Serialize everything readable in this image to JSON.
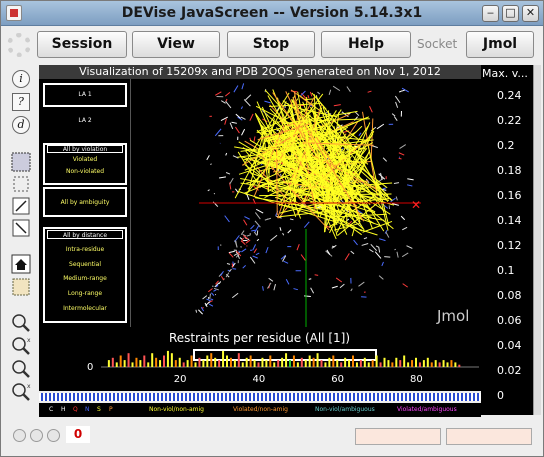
{
  "window": {
    "title": "DEVise JavaScreen -- Version 5.14.3x1"
  },
  "toolbar": {
    "session_label": "Session",
    "view_label": "View",
    "stop_label": "Stop",
    "help_label": "Help",
    "socket_label": "Socket",
    "jmol_label": "Jmol"
  },
  "left_tools": {
    "info": "i",
    "help": "?",
    "d": "d"
  },
  "viz": {
    "title": "Visualization of 15209x and PDB 2OQS generated on Nov 1, 2012",
    "side": {
      "la1": "LA 1",
      "la2": "LA 2",
      "all_by_violation": "All by violation",
      "violated": "Violated",
      "non_violated": "Non-violated",
      "all_by_ambiguity": "All by ambiguity",
      "all_by_distance": "All by distance",
      "intra_residue": "Intra-residue",
      "sequential": "Sequential",
      "medium_range": "Medium-range",
      "long_range": "Long-range",
      "intermolecular": "Intermolecular"
    },
    "jmol_watermark": "Jmol"
  },
  "chart_data": {
    "type": "bar",
    "title": "Restraints per residue (All [1])",
    "xlim": [
      0,
      96
    ],
    "x_ticks": [
      "20",
      "40",
      "60",
      "80"
    ],
    "y_tick": "0",
    "bars": [
      {
        "x": 2,
        "v": 3,
        "c": "#ffff33"
      },
      {
        "x": 3,
        "v": 4,
        "c": "#ff5555"
      },
      {
        "x": 4,
        "v": 2,
        "c": "#ffff33"
      },
      {
        "x": 5,
        "v": 5,
        "c": "#ff8800"
      },
      {
        "x": 6,
        "v": 3,
        "c": "#ffff33"
      },
      {
        "x": 7,
        "v": 6,
        "c": "#ff5555"
      },
      {
        "x": 8,
        "v": 2,
        "c": "#ffff33"
      },
      {
        "x": 9,
        "v": 4,
        "c": "#ff8800"
      },
      {
        "x": 10,
        "v": 3,
        "c": "#ffff33"
      },
      {
        "x": 11,
        "v": 5,
        "c": "#ff5555"
      },
      {
        "x": 12,
        "v": 2,
        "c": "#ffff33"
      },
      {
        "x": 13,
        "v": 6,
        "c": "#ffff33"
      },
      {
        "x": 14,
        "v": 4,
        "c": "#ff8800"
      },
      {
        "x": 15,
        "v": 3,
        "c": "#ffff33"
      },
      {
        "x": 16,
        "v": 5,
        "c": "#ff5555"
      },
      {
        "x": 17,
        "v": 7,
        "c": "#ffff33"
      },
      {
        "x": 18,
        "v": 6,
        "c": "#ffff33"
      },
      {
        "x": 19,
        "v": 3,
        "c": "#ff8800"
      },
      {
        "x": 20,
        "v": 4,
        "c": "#ffff33"
      },
      {
        "x": 21,
        "v": 2,
        "c": "#ff5555"
      },
      {
        "x": 22,
        "v": 3,
        "c": "#ffff33"
      },
      {
        "x": 23,
        "v": 5,
        "c": "#ff8800"
      },
      {
        "x": 24,
        "v": 2,
        "c": "#ffff33"
      },
      {
        "x": 25,
        "v": 4,
        "c": "#ff5555"
      },
      {
        "x": 26,
        "v": 3,
        "c": "#ffff33"
      },
      {
        "x": 27,
        "v": 5,
        "c": "#ffff33"
      },
      {
        "x": 28,
        "v": 6,
        "c": "#ff8800"
      },
      {
        "x": 29,
        "v": 4,
        "c": "#ffff33"
      },
      {
        "x": 30,
        "v": 3,
        "c": "#ff5555"
      },
      {
        "x": 31,
        "v": 7,
        "c": "#ffff33"
      },
      {
        "x": 32,
        "v": 5,
        "c": "#ffff33"
      },
      {
        "x": 33,
        "v": 4,
        "c": "#ff8800"
      },
      {
        "x": 34,
        "v": 3,
        "c": "#ffff33"
      },
      {
        "x": 35,
        "v": 6,
        "c": "#ff5555"
      },
      {
        "x": 36,
        "v": 2,
        "c": "#ffff33"
      },
      {
        "x": 37,
        "v": 4,
        "c": "#ffff33"
      },
      {
        "x": 38,
        "v": 5,
        "c": "#ff8800"
      },
      {
        "x": 39,
        "v": 3,
        "c": "#ffff33"
      },
      {
        "x": 40,
        "v": 2,
        "c": "#ff5555"
      },
      {
        "x": 41,
        "v": 4,
        "c": "#ffff33"
      },
      {
        "x": 42,
        "v": 3,
        "c": "#ffff33"
      },
      {
        "x": 43,
        "v": 5,
        "c": "#ff8800"
      },
      {
        "x": 44,
        "v": 2,
        "c": "#ffff33"
      },
      {
        "x": 45,
        "v": 3,
        "c": "#ff5555"
      },
      {
        "x": 46,
        "v": 4,
        "c": "#ffff33"
      },
      {
        "x": 47,
        "v": 6,
        "c": "#ffff33"
      },
      {
        "x": 48,
        "v": 3,
        "c": "#33cc33"
      },
      {
        "x": 49,
        "v": 5,
        "c": "#ff8800"
      },
      {
        "x": 50,
        "v": 2,
        "c": "#ffff33"
      },
      {
        "x": 51,
        "v": 4,
        "c": "#ff5555"
      },
      {
        "x": 52,
        "v": 3,
        "c": "#ffff33"
      },
      {
        "x": 53,
        "v": 5,
        "c": "#ffff33"
      },
      {
        "x": 54,
        "v": 4,
        "c": "#ff8800"
      },
      {
        "x": 55,
        "v": 6,
        "c": "#ffff33"
      },
      {
        "x": 56,
        "v": 3,
        "c": "#ff5555"
      },
      {
        "x": 57,
        "v": 2,
        "c": "#ffff33"
      },
      {
        "x": 58,
        "v": 4,
        "c": "#ffff33"
      },
      {
        "x": 59,
        "v": 5,
        "c": "#ff8800"
      },
      {
        "x": 60,
        "v": 3,
        "c": "#ffff33"
      },
      {
        "x": 61,
        "v": 2,
        "c": "#ff5555"
      },
      {
        "x": 62,
        "v": 4,
        "c": "#ffff33"
      },
      {
        "x": 63,
        "v": 3,
        "c": "#ffff33"
      },
      {
        "x": 64,
        "v": 5,
        "c": "#ff8800"
      },
      {
        "x": 65,
        "v": 2,
        "c": "#ffff33"
      },
      {
        "x": 66,
        "v": 3,
        "c": "#ff5555"
      },
      {
        "x": 67,
        "v": 4,
        "c": "#ffff33"
      },
      {
        "x": 68,
        "v": 2,
        "c": "#ffff33"
      },
      {
        "x": 69,
        "v": 3,
        "c": "#ff8800"
      },
      {
        "x": 70,
        "v": 5,
        "c": "#ffff33"
      },
      {
        "x": 71,
        "v": 2,
        "c": "#ff5555"
      },
      {
        "x": 72,
        "v": 4,
        "c": "#ffff33"
      },
      {
        "x": 73,
        "v": 3,
        "c": "#ffff33"
      },
      {
        "x": 74,
        "v": 2,
        "c": "#ff8800"
      },
      {
        "x": 75,
        "v": 4,
        "c": "#ffff33"
      },
      {
        "x": 76,
        "v": 3,
        "c": "#ff5555"
      },
      {
        "x": 77,
        "v": 5,
        "c": "#ffff33"
      },
      {
        "x": 78,
        "v": 2,
        "c": "#ffff33"
      },
      {
        "x": 79,
        "v": 3,
        "c": "#ff8800"
      },
      {
        "x": 80,
        "v": 4,
        "c": "#ffff33"
      },
      {
        "x": 81,
        "v": 2,
        "c": "#ff5555"
      },
      {
        "x": 82,
        "v": 3,
        "c": "#ffff33"
      },
      {
        "x": 83,
        "v": 4,
        "c": "#ffff33"
      },
      {
        "x": 84,
        "v": 2,
        "c": "#ff8800"
      },
      {
        "x": 85,
        "v": 3,
        "c": "#ffff33"
      },
      {
        "x": 86,
        "v": 2,
        "c": "#ff5555"
      },
      {
        "x": 87,
        "v": 3,
        "c": "#ffff33"
      },
      {
        "x": 88,
        "v": 2,
        "c": "#ffff33"
      },
      {
        "x": 89,
        "v": 3,
        "c": "#ff8800"
      },
      {
        "x": 90,
        "v": 2,
        "c": "#ffff33"
      },
      {
        "x": 91,
        "v": 1,
        "c": "#ff5555"
      }
    ]
  },
  "legend": {
    "c": "C",
    "h": "H",
    "q": "Q",
    "n": "N",
    "s": "S",
    "p": "P",
    "nonviol_nonamb": "Non-viol/non-amig",
    "viol_nonamb": "Violated/non-amig",
    "nonviol_amb": "Non-viol/ambiguous",
    "viol_amb": "Violated/ambiguous"
  },
  "right_chart": {
    "title": "Max. v...",
    "ticks": [
      "0.24",
      "0.22",
      "0.2",
      "0.18",
      "0.16",
      "0.14",
      "0.12",
      "0.1",
      "0.08",
      "0.06",
      "0.04",
      "0.02",
      "0"
    ]
  },
  "status": {
    "count": "0"
  }
}
